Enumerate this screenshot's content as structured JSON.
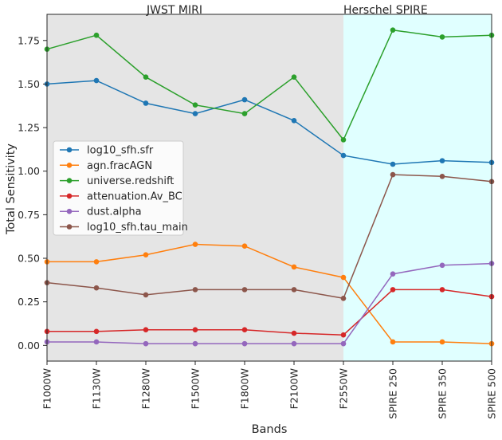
{
  "chart_data": {
    "type": "line",
    "xlabel": "Bands",
    "ylabel": "Total Sensitivity",
    "ylim": [
      -0.09,
      1.9
    ],
    "yticks": [
      "0.00",
      "0.25",
      "0.50",
      "0.75",
      "1.00",
      "1.25",
      "1.50",
      "1.75"
    ],
    "ytick_values": [
      0,
      0.25,
      0.5,
      0.75,
      1.0,
      1.25,
      1.5,
      1.75
    ],
    "categories": [
      "F1000W",
      "F1130W",
      "F1280W",
      "F1500W",
      "F1800W",
      "F2100W",
      "F2550W",
      "SPIRE 250",
      "SPIRE 350",
      "SPIRE 500"
    ],
    "grid": false,
    "legend_position": "center-left",
    "regions": [
      {
        "label": "JWST MIRI",
        "from": 0,
        "to": 6,
        "color": "#e5e5e5"
      },
      {
        "label": "Herschel SPIRE",
        "from": 6,
        "to": 9,
        "color": "#e0ffff"
      }
    ],
    "series": [
      {
        "name": "log10_sfh.sfr",
        "color": "#1f77b4",
        "values": [
          1.5,
          1.52,
          1.39,
          1.33,
          1.41,
          1.29,
          1.09,
          1.04,
          1.06,
          1.05
        ]
      },
      {
        "name": "agn.fracAGN",
        "color": "#ff7f0e",
        "values": [
          0.48,
          0.48,
          0.52,
          0.58,
          0.57,
          0.45,
          0.39,
          0.02,
          0.02,
          0.01
        ]
      },
      {
        "name": "universe.redshift",
        "color": "#2ca02c",
        "values": [
          1.7,
          1.78,
          1.54,
          1.38,
          1.33,
          1.54,
          1.18,
          1.81,
          1.77,
          1.78
        ]
      },
      {
        "name": "attenuation.Av_BC",
        "color": "#d62728",
        "values": [
          0.08,
          0.08,
          0.09,
          0.09,
          0.09,
          0.07,
          0.06,
          0.32,
          0.32,
          0.28
        ]
      },
      {
        "name": "dust.alpha",
        "color": "#9467bd",
        "values": [
          0.02,
          0.02,
          0.01,
          0.01,
          0.01,
          0.01,
          0.01,
          0.41,
          0.46,
          0.47
        ]
      },
      {
        "name": "log10_sfh.tau_main",
        "color": "#8c564b",
        "values": [
          0.36,
          0.33,
          0.29,
          0.32,
          0.32,
          0.32,
          0.27,
          0.98,
          0.97,
          0.94
        ]
      }
    ]
  }
}
